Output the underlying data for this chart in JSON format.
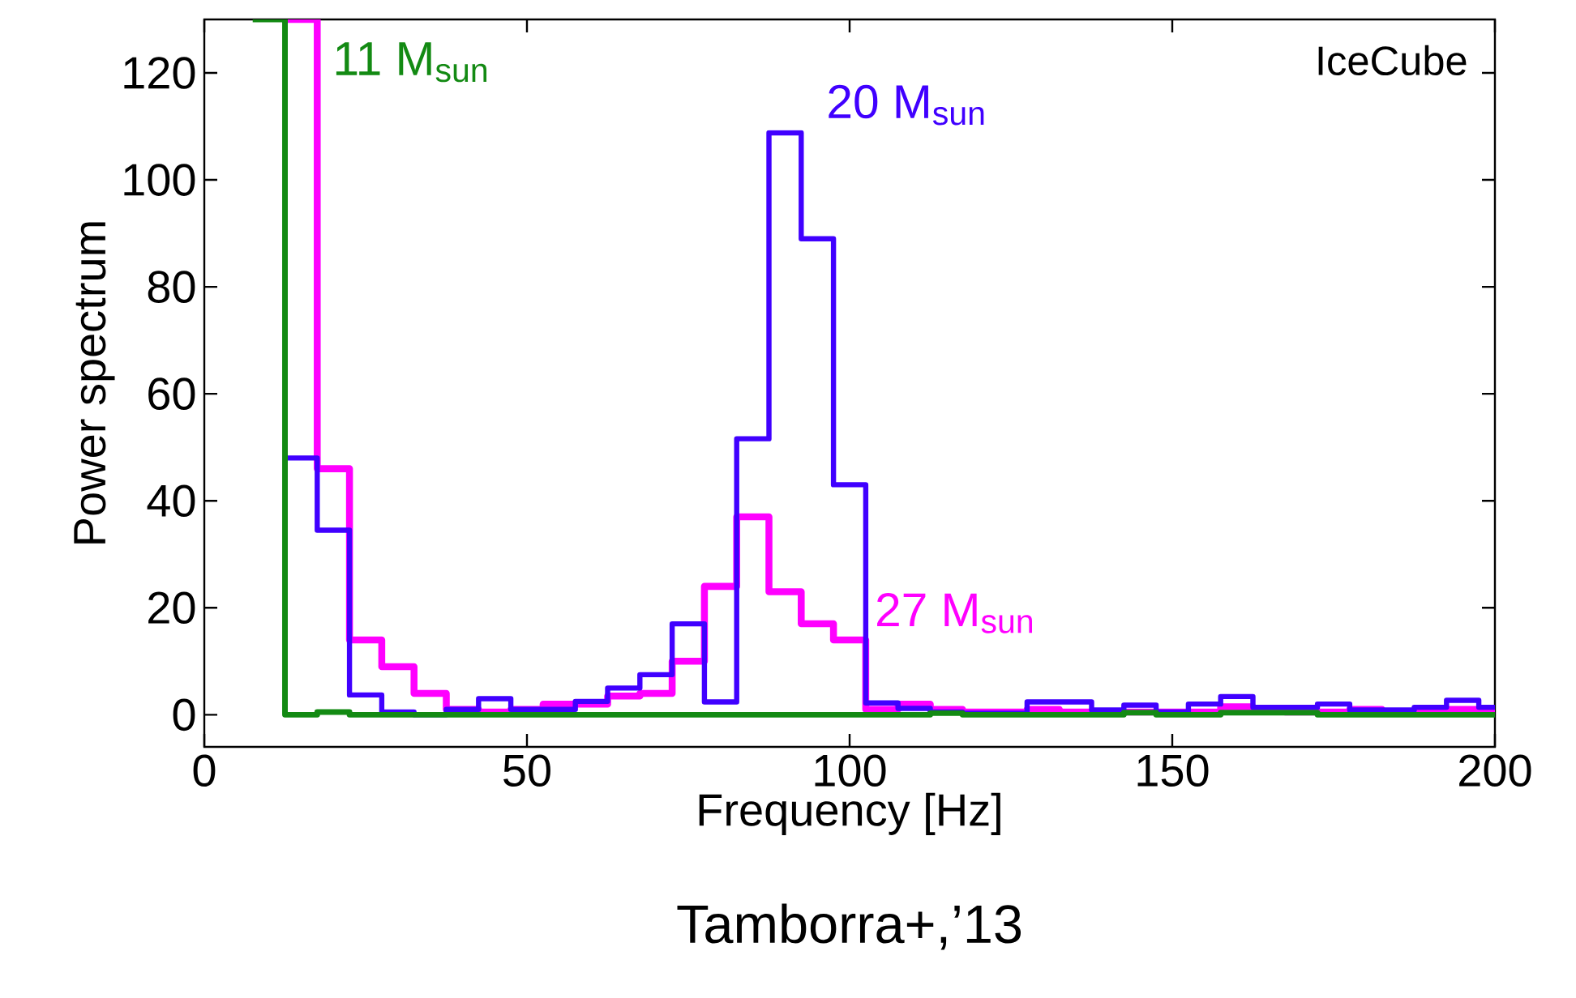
{
  "chart_data": {
    "type": "step",
    "xlabel": "Frequency [Hz]",
    "ylabel": "Power spectrum",
    "annotations": [
      "IceCube",
      "Tamborra+,’13"
    ],
    "x": [
      12.5,
      17.5,
      22.5,
      27.5,
      32.5,
      37.5,
      42.5,
      47.5,
      52.5,
      57.5,
      62.5,
      67.5,
      72.5,
      77.5,
      82.5,
      87.5,
      92.5,
      97.5,
      102.5,
      107.5,
      112.5,
      117.5,
      122.5,
      127.5,
      132.5,
      137.5,
      142.5,
      147.5,
      152.5,
      157.5,
      162.5,
      167.5,
      172.5,
      177.5,
      182.5,
      187.5,
      192.5,
      197.5,
      200
    ],
    "series": [
      {
        "name": "27 M$_{sun}$",
        "color": "#ff00ff",
        "values": [
          130,
          46,
          14,
          9,
          4,
          1,
          0.5,
          1,
          2,
          2,
          3.5,
          4,
          10,
          24,
          37,
          23,
          17,
          14,
          1,
          2,
          1,
          0.5,
          0.5,
          1,
          0.5,
          0.5,
          0.5,
          0.5,
          0.5,
          1.5,
          1,
          0.5,
          0.5,
          1,
          0.5,
          0.5,
          1,
          0.5,
          0.5
        ]
      },
      {
        "name": "20 M$_{sun}$",
        "color": "#4000ff",
        "values": [
          48,
          34.5,
          3.7,
          0.5,
          0,
          1,
          3,
          1,
          1,
          2.5,
          5,
          7.5,
          17,
          2.4,
          51.6,
          108.8,
          89,
          43,
          2.2,
          1.2,
          0.5,
          0.3,
          0.3,
          2.4,
          2.4,
          0.9,
          1.8,
          0.5,
          2.0,
          3.4,
          1.4,
          1.4,
          2.0,
          0.9,
          0.9,
          1.4,
          2.7,
          1.4,
          1.4
        ]
      },
      {
        "name": "11 M$_{sun}$",
        "color": "#138a13",
        "x": [
          7.5,
          12.5,
          17.5,
          22.5,
          27.5,
          32.5,
          37.5,
          42.5,
          47.5,
          52.5,
          57.5,
          62.5,
          67.5,
          72.5,
          77.5,
          82.5,
          87.5,
          92.5,
          97.5,
          102.5,
          107.5,
          112.5,
          117.5,
          122.5,
          127.5,
          132.5,
          137.5,
          142.5,
          147.5,
          152.5,
          157.5,
          162.5,
          167.5,
          172.5,
          177.5,
          182.5,
          187.5,
          192.5,
          197.5,
          200
        ],
        "values": [
          130,
          0,
          0.5,
          0,
          0,
          0,
          0,
          0,
          0,
          0,
          0,
          0,
          0,
          0,
          0,
          0,
          0,
          0,
          0,
          0,
          0,
          0.3,
          0,
          0,
          0,
          0,
          0,
          0.4,
          0,
          0,
          0.4,
          0.4,
          0.4,
          0,
          0,
          0,
          0,
          0,
          0,
          0
        ]
      }
    ],
    "xlim": [
      0,
      200
    ],
    "ylim": [
      -6,
      130
    ],
    "xticks": [
      0,
      50,
      100,
      150,
      200
    ],
    "yticks": [
      0,
      20,
      40,
      60,
      80,
      100,
      120
    ]
  }
}
